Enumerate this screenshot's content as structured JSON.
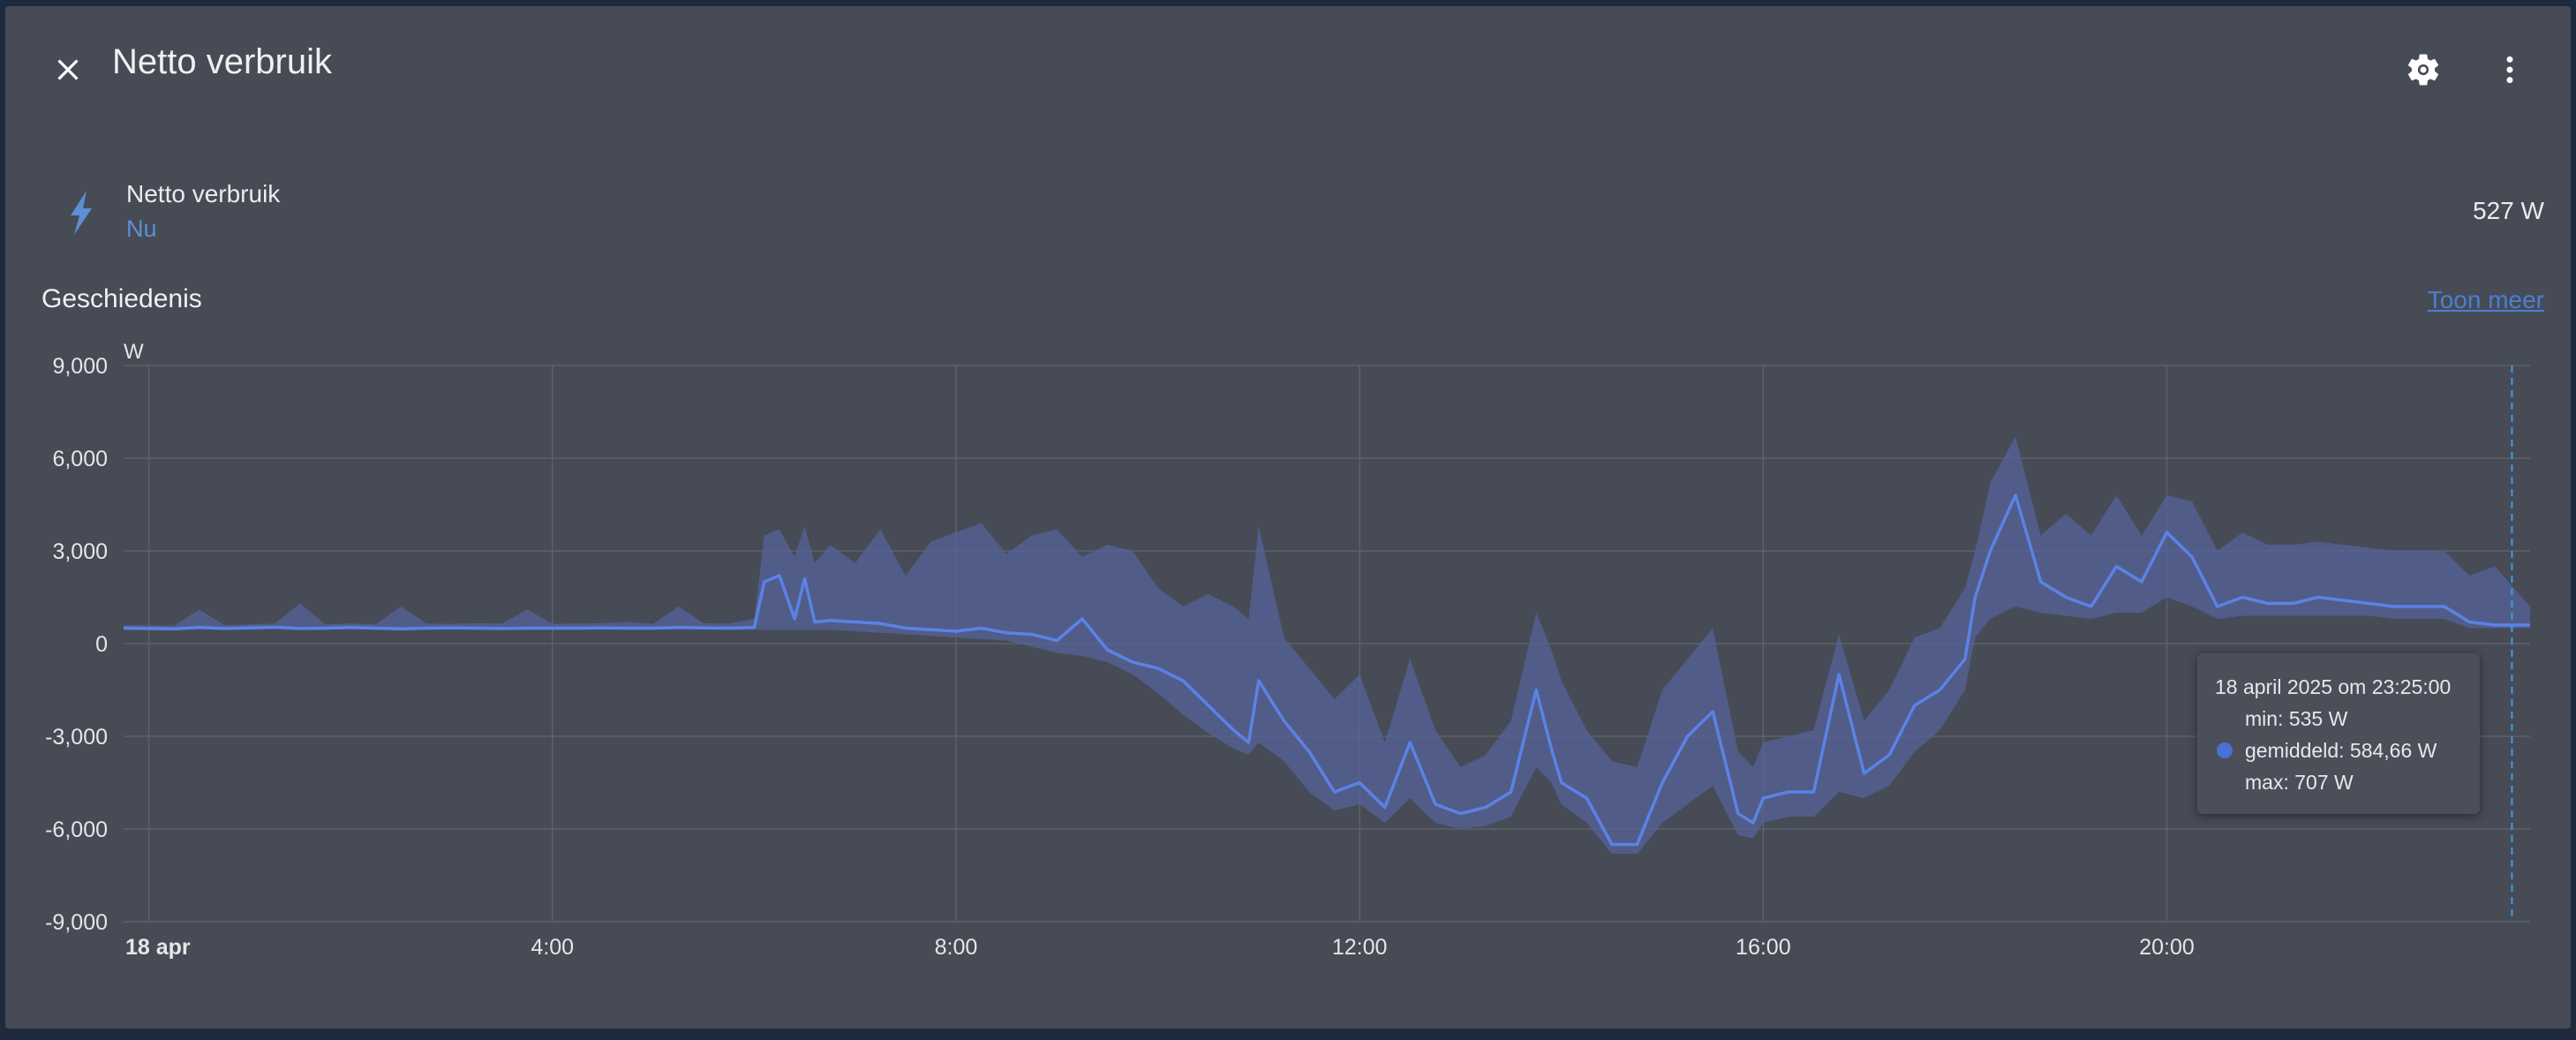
{
  "dialog": {
    "title": "Netto verbruik",
    "close_icon": "close-icon",
    "settings_icon": "gear-icon",
    "more_icon": "more-vert-icon"
  },
  "entity": {
    "icon": "lightning-bolt-icon",
    "name": "Netto verbruik",
    "sublabel": "Nu",
    "value": "527 W",
    "accent": "#5c8fd6"
  },
  "history": {
    "title": "Geschiedenis",
    "more_link": "Toon meer"
  },
  "tooltip": {
    "date": "18 april 2025 om 23:25:00",
    "min": "min: 535 W",
    "avg": "gemiddeld: 584,66 W",
    "max": "max: 707 W"
  },
  "chart_data": {
    "type": "line",
    "unit": "W",
    "ylim": [
      -9000,
      9000
    ],
    "yticks": [
      9000,
      6000,
      3000,
      0,
      -3000,
      -6000,
      -9000
    ],
    "ytick_labels": [
      "9,000",
      "6,000",
      "3,000",
      "0",
      "-3,000",
      "-6,000",
      "-9,000"
    ],
    "xlim": [
      -0.25,
      23.6
    ],
    "xticks": [
      0,
      4,
      8,
      12,
      16,
      20
    ],
    "xtick_labels": [
      "18 apr",
      "4:00",
      "8:00",
      "12:00",
      "16:00",
      "20:00"
    ],
    "grid": true,
    "line_color": "#5b82e6",
    "band_color": "#56639a",
    "cursor_x": 23.42,
    "series": [
      {
        "x": [
          -0.25,
          0.25,
          0.5,
          0.75,
          1.0,
          1.25,
          1.5,
          1.75,
          2.0,
          2.25,
          2.5,
          2.75,
          3.0,
          3.25,
          3.5,
          3.75,
          4.0,
          4.25,
          4.5,
          4.75,
          5.0,
          5.25,
          5.5,
          5.75,
          6.0,
          6.1,
          6.25,
          6.4,
          6.5,
          6.6,
          6.75,
          7.0,
          7.25,
          7.5,
          7.75,
          8.0,
          8.25,
          8.5,
          8.75,
          9.0,
          9.25,
          9.5,
          9.75,
          10.0,
          10.25,
          10.5,
          10.75,
          10.9,
          11.0,
          11.25,
          11.5,
          11.75,
          12.0,
          12.25,
          12.5,
          12.75,
          13.0,
          13.25,
          13.5,
          13.75,
          13.9,
          14.0,
          14.25,
          14.5,
          14.75,
          15.0,
          15.25,
          15.5,
          15.75,
          15.9,
          16.0,
          16.25,
          16.5,
          16.75,
          17.0,
          17.25,
          17.5,
          17.75,
          18.0,
          18.1,
          18.25,
          18.5,
          18.75,
          19.0,
          19.25,
          19.5,
          19.75,
          20.0,
          20.25,
          20.5,
          20.75,
          21.0,
          21.25,
          21.5,
          21.75,
          22.0,
          22.25,
          22.5,
          22.75,
          23.0,
          23.25,
          23.6
        ],
        "mean": [
          500,
          480,
          520,
          490,
          510,
          530,
          490,
          500,
          520,
          500,
          480,
          500,
          510,
          500,
          490,
          500,
          500,
          500,
          510,
          500,
          500,
          520,
          510,
          500,
          520,
          2000,
          2200,
          800,
          2100,
          700,
          750,
          700,
          650,
          500,
          450,
          400,
          500,
          350,
          300,
          100,
          800,
          -200,
          -600,
          -800,
          -1200,
          -2000,
          -2800,
          -3200,
          -1200,
          -2500,
          -3500,
          -4800,
          -4500,
          -5300,
          -3200,
          -5200,
          -5500,
          -5300,
          -4800,
          -1500,
          -3400,
          -4500,
          -5000,
          -6500,
          -6500,
          -4500,
          -3000,
          -2200,
          -5500,
          -5800,
          -5000,
          -4800,
          -4800,
          -1000,
          -4200,
          -3600,
          -2000,
          -1500,
          -500,
          1500,
          3000,
          4800,
          2000,
          1500,
          1200,
          2500,
          2000,
          3600,
          2800,
          1200,
          1500,
          1300,
          1300,
          1500,
          1400,
          1300,
          1200,
          1200,
          1200,
          700,
          600,
          600
        ],
        "min": [
          450,
          430,
          470,
          440,
          460,
          480,
          440,
          450,
          470,
          450,
          430,
          450,
          460,
          450,
          440,
          450,
          450,
          450,
          460,
          450,
          450,
          470,
          460,
          450,
          450,
          450,
          450,
          450,
          450,
          450,
          450,
          400,
          350,
          300,
          250,
          200,
          150,
          100,
          -100,
          -300,
          -400,
          -600,
          -1000,
          -1600,
          -2300,
          -2900,
          -3400,
          -3600,
          -3200,
          -3800,
          -4800,
          -5400,
          -5200,
          -5800,
          -5000,
          -5800,
          -6000,
          -5900,
          -5600,
          -4000,
          -4500,
          -5200,
          -5800,
          -6800,
          -6800,
          -5800,
          -5200,
          -4600,
          -6200,
          -6300,
          -5800,
          -5600,
          -5600,
          -4800,
          -5000,
          -4600,
          -3500,
          -2800,
          -1500,
          200,
          800,
          1200,
          1000,
          900,
          800,
          1000,
          1000,
          1500,
          1200,
          800,
          900,
          900,
          900,
          900,
          900,
          900,
          800,
          800,
          800,
          500,
          500,
          500
        ],
        "max": [
          600,
          580,
          1100,
          600,
          620,
          650,
          1300,
          620,
          650,
          630,
          1200,
          650,
          640,
          660,
          650,
          1100,
          640,
          650,
          660,
          700,
          640,
          1200,
          660,
          650,
          800,
          3500,
          3700,
          2800,
          3800,
          2600,
          3200,
          2600,
          3700,
          2200,
          3300,
          3600,
          3900,
          2900,
          3500,
          3700,
          2800,
          3200,
          3000,
          1800,
          1200,
          1600,
          1200,
          800,
          3800,
          200,
          -800,
          -1800,
          -1000,
          -3200,
          -500,
          -2800,
          -4000,
          -3600,
          -2500,
          1000,
          -200,
          -1200,
          -2800,
          -3800,
          -4000,
          -1500,
          -500,
          500,
          -3500,
          -4000,
          -3200,
          -3000,
          -2800,
          300,
          -2500,
          -1500,
          200,
          500,
          1800,
          3000,
          5200,
          6700,
          3500,
          4200,
          3500,
          4800,
          3500,
          4800,
          4600,
          3000,
          3600,
          3200,
          3200,
          3300,
          3200,
          3100,
          3000,
          3000,
          3000,
          2200,
          2500,
          1200
        ]
      }
    ]
  }
}
